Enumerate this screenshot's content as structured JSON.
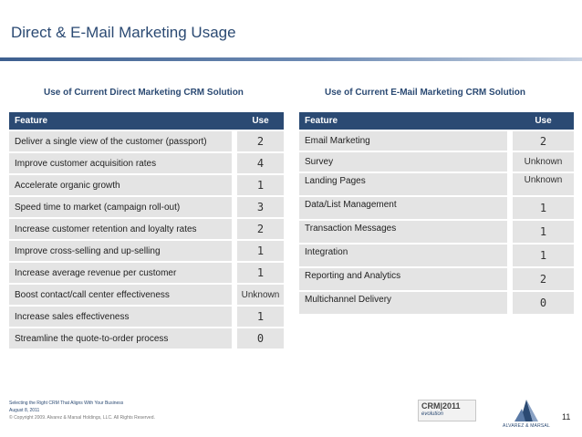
{
  "slide": {
    "title": "Direct & E-Mail Marketing Usage",
    "page_number": "11"
  },
  "direct": {
    "heading": "Use of Current Direct Marketing CRM Solution",
    "col_feature": "Feature",
    "col_use": "Use",
    "rows": [
      {
        "feature": "Deliver a single view of the customer (passport)",
        "use": "2"
      },
      {
        "feature": "Improve customer acquisition rates",
        "use": "4"
      },
      {
        "feature": "Accelerate organic growth",
        "use": "1"
      },
      {
        "feature": "Speed time to market (campaign roll-out)",
        "use": "3"
      },
      {
        "feature": "Increase customer retention and loyalty rates",
        "use": "2"
      },
      {
        "feature": "Improve cross-selling and up-selling",
        "use": "1"
      },
      {
        "feature": "Increase average revenue per customer",
        "use": "1"
      },
      {
        "feature": "Boost contact/call center effectiveness",
        "use": "Unknown"
      },
      {
        "feature": "Increase sales effectiveness",
        "use": "1"
      },
      {
        "feature": "Streamline the quote-to-order process",
        "use": "0"
      }
    ]
  },
  "email": {
    "heading": "Use of Current E-Mail Marketing CRM Solution",
    "col_feature": "Feature",
    "col_use": "Use",
    "rows": [
      {
        "feature": "Email Marketing",
        "use": "2"
      },
      {
        "feature": "Survey",
        "use": "Unknown"
      },
      {
        "feature": "Landing Pages",
        "use": "Unknown"
      },
      {
        "feature": "Data/List Management",
        "use": "1"
      },
      {
        "feature": "Transaction Messages",
        "use": "1"
      },
      {
        "feature": "Integration",
        "use": "1"
      },
      {
        "feature": "Reporting and Analytics",
        "use": "2"
      },
      {
        "feature": "Multichannel Delivery",
        "use": "0"
      }
    ]
  },
  "footer": {
    "line1": "Selecting the Right CRM That Aligns With Your Business",
    "line2": "August 8, 2011",
    "copyright": "© Copyright 2009. Alvarez & Marsal Holdings, LLC. All Rights Reserved."
  },
  "badge": {
    "crm": "CRM|2011",
    "sub": "evolution"
  },
  "logo": {
    "name": "ALVAREZ & MARSAL",
    "colors": {
      "dark": "#2b4a73",
      "light": "#8aa2c4"
    }
  }
}
